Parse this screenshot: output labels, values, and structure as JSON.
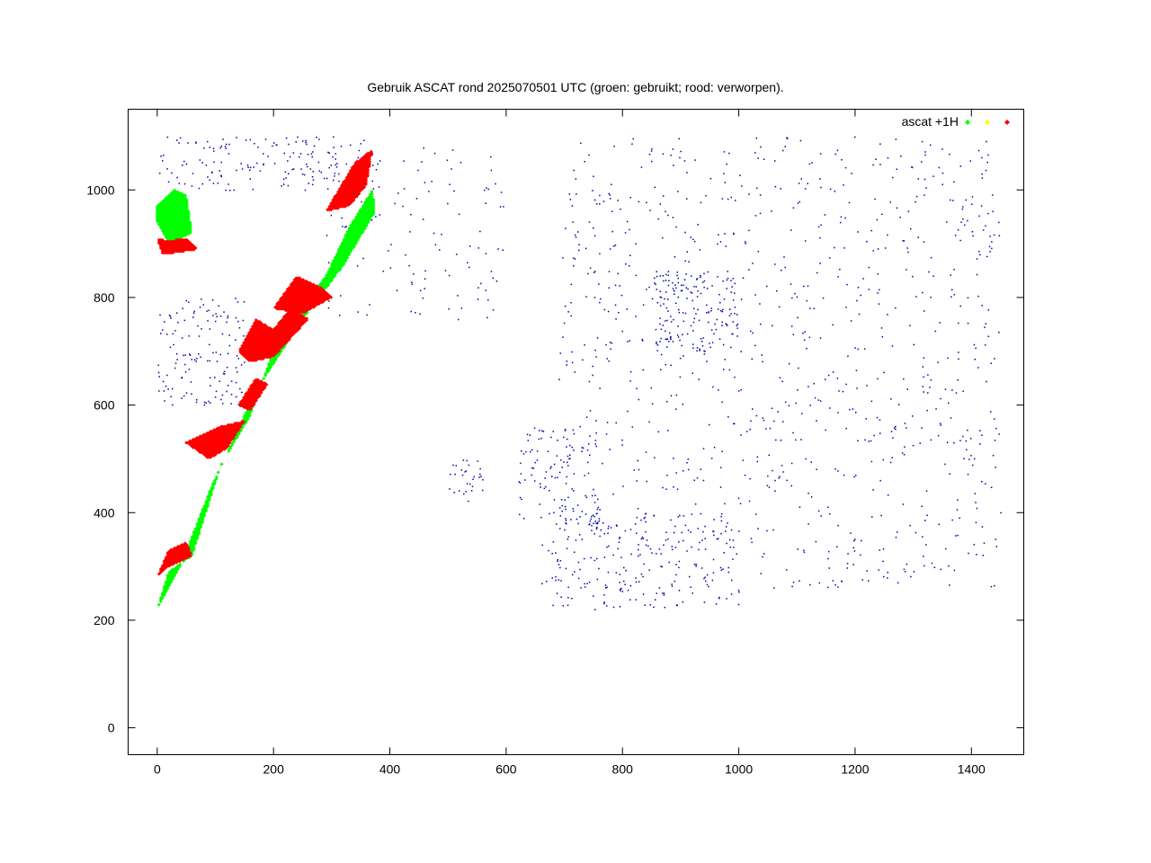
{
  "chart_data": {
    "type": "scatter",
    "title": "Gebruik ASCAT rond 2025070501 UTC (groen: gebruikt; rood: verworpen).",
    "xlabel": "",
    "ylabel": "",
    "xlim": [
      -50,
      1490
    ],
    "ylim": [
      -50,
      1150
    ],
    "xticks": [
      0,
      200,
      400,
      600,
      800,
      1000,
      1200,
      1400
    ],
    "yticks": [
      0,
      200,
      400,
      600,
      800,
      1000
    ],
    "grid": false,
    "legend": {
      "placement": "top-right",
      "label": "ascat +1H",
      "colors": [
        "#00ff00",
        "#ffff00",
        "#ff0000"
      ]
    },
    "series": [
      {
        "status": "used",
        "color": "#00ff00",
        "regions": [
          {
            "polygon": [
              [
                0,
                220
              ],
              [
                20,
                290
              ],
              [
                60,
                320
              ],
              [
                110,
                490
              ],
              [
                160,
                580
              ],
              [
                200,
                700
              ],
              [
                250,
                780
              ],
              [
                290,
                840
              ],
              [
                330,
                930
              ],
              [
                370,
                1000
              ],
              [
                375,
                960
              ],
              [
                320,
                860
              ],
              [
                250,
                760
              ],
              [
                190,
                660
              ],
              [
                150,
                580
              ],
              [
                90,
                440
              ],
              [
                40,
                300
              ],
              [
                0,
                220
              ]
            ]
          },
          {
            "polygon": [
              [
                0,
                970
              ],
              [
                30,
                1000
              ],
              [
                50,
                990
              ],
              [
                60,
                920
              ],
              [
                20,
                900
              ],
              [
                0,
                940
              ]
            ]
          }
        ]
      },
      {
        "status": "rejected",
        "color": "#ff0000",
        "regions": [
          {
            "polygon": [
              [
                0,
                280
              ],
              [
                20,
                330
              ],
              [
                50,
                345
              ],
              [
                60,
                320
              ],
              [
                20,
                300
              ]
            ]
          },
          {
            "polygon": [
              [
                50,
                530
              ],
              [
                90,
                500
              ],
              [
                120,
                520
              ],
              [
                150,
                570
              ],
              [
                110,
                560
              ],
              [
                70,
                540
              ]
            ]
          },
          {
            "polygon": [
              [
                140,
                600
              ],
              [
                170,
                650
              ],
              [
                190,
                640
              ],
              [
                160,
                590
              ]
            ]
          },
          {
            "polygon": [
              [
                140,
                700
              ],
              [
                170,
                760
              ],
              [
                200,
                740
              ],
              [
                230,
                780
              ],
              [
                260,
                760
              ],
              [
                200,
                690
              ],
              [
                160,
                680
              ]
            ]
          },
          {
            "polygon": [
              [
                200,
                780
              ],
              [
                240,
                840
              ],
              [
                280,
                820
              ],
              [
                300,
                800
              ],
              [
                250,
                770
              ]
            ]
          },
          {
            "polygon": [
              [
                290,
                960
              ],
              [
                340,
                1050
              ],
              [
                370,
                1075
              ],
              [
                360,
                1010
              ],
              [
                330,
                970
              ]
            ]
          },
          {
            "polygon": [
              [
                0,
                910
              ],
              [
                10,
                880
              ],
              [
                40,
                885
              ],
              [
                70,
                890
              ],
              [
                50,
                910
              ],
              [
                20,
                905
              ]
            ]
          }
        ]
      }
    ],
    "background_map": {
      "color": "#0000aa",
      "description_visible": false
    }
  }
}
